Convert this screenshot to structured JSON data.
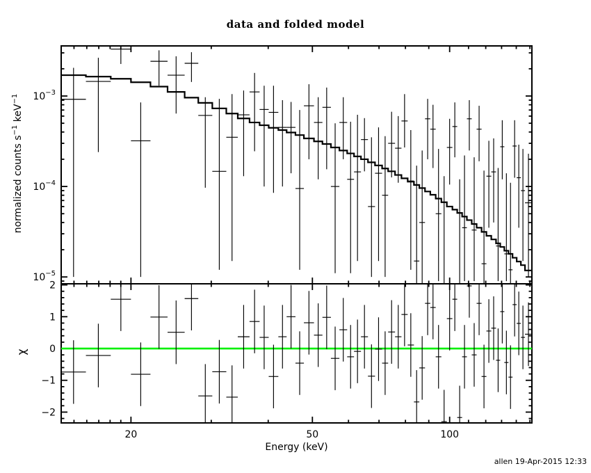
{
  "title": "data and folded model",
  "footer": "allen 19-Apr-2015 12:33",
  "labels": {
    "y_top_main": "normalized counts s",
    "y_top_sup1": "−1",
    "y_top_unit": " keV",
    "y_top_sup2": "−1",
    "y_bottom": "χ",
    "x_axis": "Energy (keV)"
  },
  "colors": {
    "frame": "#000000",
    "model": "#000000",
    "data": "#000000",
    "zero_line": "#00f000",
    "background": "#ffffff"
  },
  "chart_data": [
    {
      "type": "line",
      "title": "data and folded model",
      "xlabel": "",
      "ylabel": "normalized counts s^-1 keV^-1",
      "xscale": "log",
      "yscale": "log",
      "xlim": [
        14.06,
        151.5
      ],
      "ylim": [
        8.4e-06,
        0.00358
      ],
      "grid": false,
      "legend": "none",
      "x_ticks_major": [
        20,
        50,
        100
      ],
      "x_ticks_minor": [
        15,
        16,
        17,
        18,
        19,
        30,
        40,
        60,
        70,
        80,
        90,
        110,
        120,
        130,
        140,
        150
      ],
      "y_tick_exponents": [
        -3,
        -4,
        -5
      ],
      "bin_edges": [
        14.06,
        15.93,
        18.06,
        20.0,
        22.07,
        24.06,
        26.23,
        28.1,
        30.16,
        32.37,
        34.3,
        36.4,
        38.3,
        40.1,
        42.1,
        43.9,
        45.9,
        47.9,
        50.4,
        52.6,
        54.9,
        57.3,
        59.6,
        61.7,
        63.9,
        66.2,
        68.6,
        71.1,
        73.3,
        75.9,
        78.4,
        80.9,
        83.5,
        85.8,
        88.3,
        90.7,
        93.2,
        95.9,
        98.6,
        101.4,
        103.9,
        106.5,
        109.1,
        111.8,
        114.6,
        117.5,
        120.4,
        123.4,
        126.4,
        129.1,
        131.8,
        134.6,
        137.4,
        140.3,
        143.3,
        146.3,
        151.5
      ],
      "model": [
        0.0017,
        0.00164,
        0.00155,
        0.00142,
        0.00127,
        0.00111,
        0.00096,
        0.00084,
        0.00073,
        0.00064,
        0.000565,
        0.00051,
        0.000475,
        0.000445,
        0.00042,
        0.000395,
        0.00037,
        0.00034,
        0.000315,
        0.000295,
        0.00027,
        0.00025,
        0.000232,
        0.000215,
        0.0002,
        0.000185,
        0.000171,
        0.000158,
        0.000147,
        0.000134,
        0.000123,
        0.000113,
        0.000104,
        9.6e-05,
        8.8e-05,
        8.1e-05,
        7.35e-05,
        6.7e-05,
        6e-05,
        5.55e-05,
        5.1e-05,
        4.65e-05,
        4.25e-05,
        3.85e-05,
        3.5e-05,
        3.15e-05,
        2.85e-05,
        2.6e-05,
        2.35e-05,
        2.15e-05,
        1.95e-05,
        1.8e-05,
        1.63e-05,
        1.48e-05,
        1.35e-05,
        1.18e-05
      ],
      "data_points": [
        [
          0.00092,
          1e-05,
          0.00205
        ],
        [
          0.00145,
          0.00024,
          0.00265
        ],
        [
          0.0033,
          0.00226,
          0.00358
        ],
        [
          0.00032,
          1e-05,
          0.00085
        ],
        [
          0.00242,
          0.0013,
          0.0032
        ],
        [
          0.0017,
          0.00064,
          0.00275
        ],
        [
          0.0023,
          0.00143,
          0.00305
        ],
        [
          0.00061,
          9.7e-05,
          0.00097
        ],
        [
          0.000147,
          1.2e-05,
          0.00093
        ],
        [
          0.00035,
          1.5e-05,
          0.00105
        ],
        [
          0.00062,
          0.00013,
          0.00115
        ],
        [
          0.00111,
          0.000245,
          0.0018
        ],
        [
          0.00071,
          0.0001,
          0.0013
        ],
        [
          0.00066,
          8.5e-05,
          0.0013
        ],
        [
          0.00045,
          0.0001,
          0.0009
        ],
        [
          0.00045,
          0.00014,
          0.00086
        ],
        [
          9.5e-05,
          1.2e-05,
          0.0007
        ],
        [
          0.00078,
          0.0002,
          0.00135
        ],
        [
          0.00051,
          0.00012,
          0.00097
        ],
        [
          0.00075,
          0.000155,
          0.00124
        ],
        [
          0.0001,
          1.1e-05,
          0.0005
        ],
        [
          0.00051,
          0.0002,
          0.00097
        ],
        [
          0.00012,
          1.1e-05,
          0.00052
        ],
        [
          0.000145,
          1.5e-05,
          0.00062
        ],
        [
          0.00033,
          0.000147,
          0.00057
        ],
        [
          6e-05,
          1e-05,
          0.00035
        ],
        [
          0.00014,
          1.5e-05,
          0.00045
        ],
        [
          8e-05,
          1e-05,
          0.00036
        ],
        [
          0.0003,
          0.000126,
          0.00067
        ],
        [
          0.000265,
          0.00011,
          0.0006
        ],
        [
          0.00053,
          0.00027,
          0.00105
        ],
        [
          0.000115,
          1.2e-05,
          0.00042
        ],
        [
          1.5e-05,
          8.5e-06,
          0.00017
        ],
        [
          4e-05,
          8.5e-06,
          0.00025
        ],
        [
          0.00056,
          0.0002,
          0.00093
        ],
        [
          0.00043,
          0.00016,
          0.0008
        ],
        [
          5e-05,
          9e-06,
          0.00026
        ],
        [
          5e-06,
          1e-06,
          0.00013
        ],
        [
          0.00027,
          0.000105,
          0.00056
        ],
        [
          0.00046,
          0.00021,
          0.00085
        ],
        [
          5e-06,
          1e-06,
          0.00012
        ],
        [
          3.5e-05,
          9e-06,
          0.00022
        ],
        [
          0.00056,
          0.00025,
          0.0009
        ],
        [
          3.3e-05,
          9e-06,
          0.00021
        ],
        [
          0.00043,
          0.00019,
          0.00078
        ],
        [
          1.4e-05,
          8.5e-06,
          0.00015
        ],
        [
          0.00013,
          3.5e-05,
          0.00032
        ],
        [
          0.000145,
          4e-05,
          0.00034
        ],
        [
          2.2e-05,
          9e-06,
          0.00016
        ],
        [
          0.000275,
          0.00012,
          0.00054
        ],
        [
          1.8e-05,
          9e-06,
          0.00014
        ],
        [
          1.2e-05,
          8.5e-06,
          0.00011
        ],
        [
          0.00028,
          0.000125,
          0.00054
        ],
        [
          0.000125,
          3.5e-05,
          0.00029
        ],
        [
          9e-05,
          1.5e-05,
          0.00026
        ],
        [
          6.6e-05,
          1e-05,
          0.00023
        ]
      ]
    },
    {
      "type": "scatter",
      "xlabel": "Energy (keV)",
      "ylabel": "χ",
      "xscale": "log",
      "xlim": [
        14.06,
        151.5
      ],
      "ylim": [
        -2.34,
        2.035
      ],
      "y_ticks_major": [
        -2,
        -1,
        0,
        1,
        2
      ],
      "y_tick_minor_step": 0.2,
      "zero_line": 0,
      "zero_line_color": "#00f000",
      "chi_error": 1.0,
      "chi_values": [
        -0.74,
        -0.22,
        1.55,
        -0.81,
        0.99,
        0.51,
        1.57,
        -1.49,
        -0.73,
        -1.53,
        0.37,
        0.85,
        0.35,
        -0.88,
        0.37,
        1.0,
        -0.46,
        0.81,
        0.42,
        0.98,
        -0.31,
        0.59,
        -0.26,
        -0.09,
        0.37,
        -0.87,
        -0.02,
        -0.46,
        0.52,
        0.37,
        1.07,
        0.11,
        -1.68,
        -0.61,
        1.42,
        1.29,
        -0.26,
        -2.3,
        0.94,
        1.55,
        -2.17,
        -0.26,
        1.97,
        -0.2,
        1.42,
        -0.88,
        0.55,
        0.64,
        -0.37,
        1.16,
        -0.44,
        -0.9,
        1.38,
        0.79,
        0.35,
        0.45
      ]
    }
  ]
}
